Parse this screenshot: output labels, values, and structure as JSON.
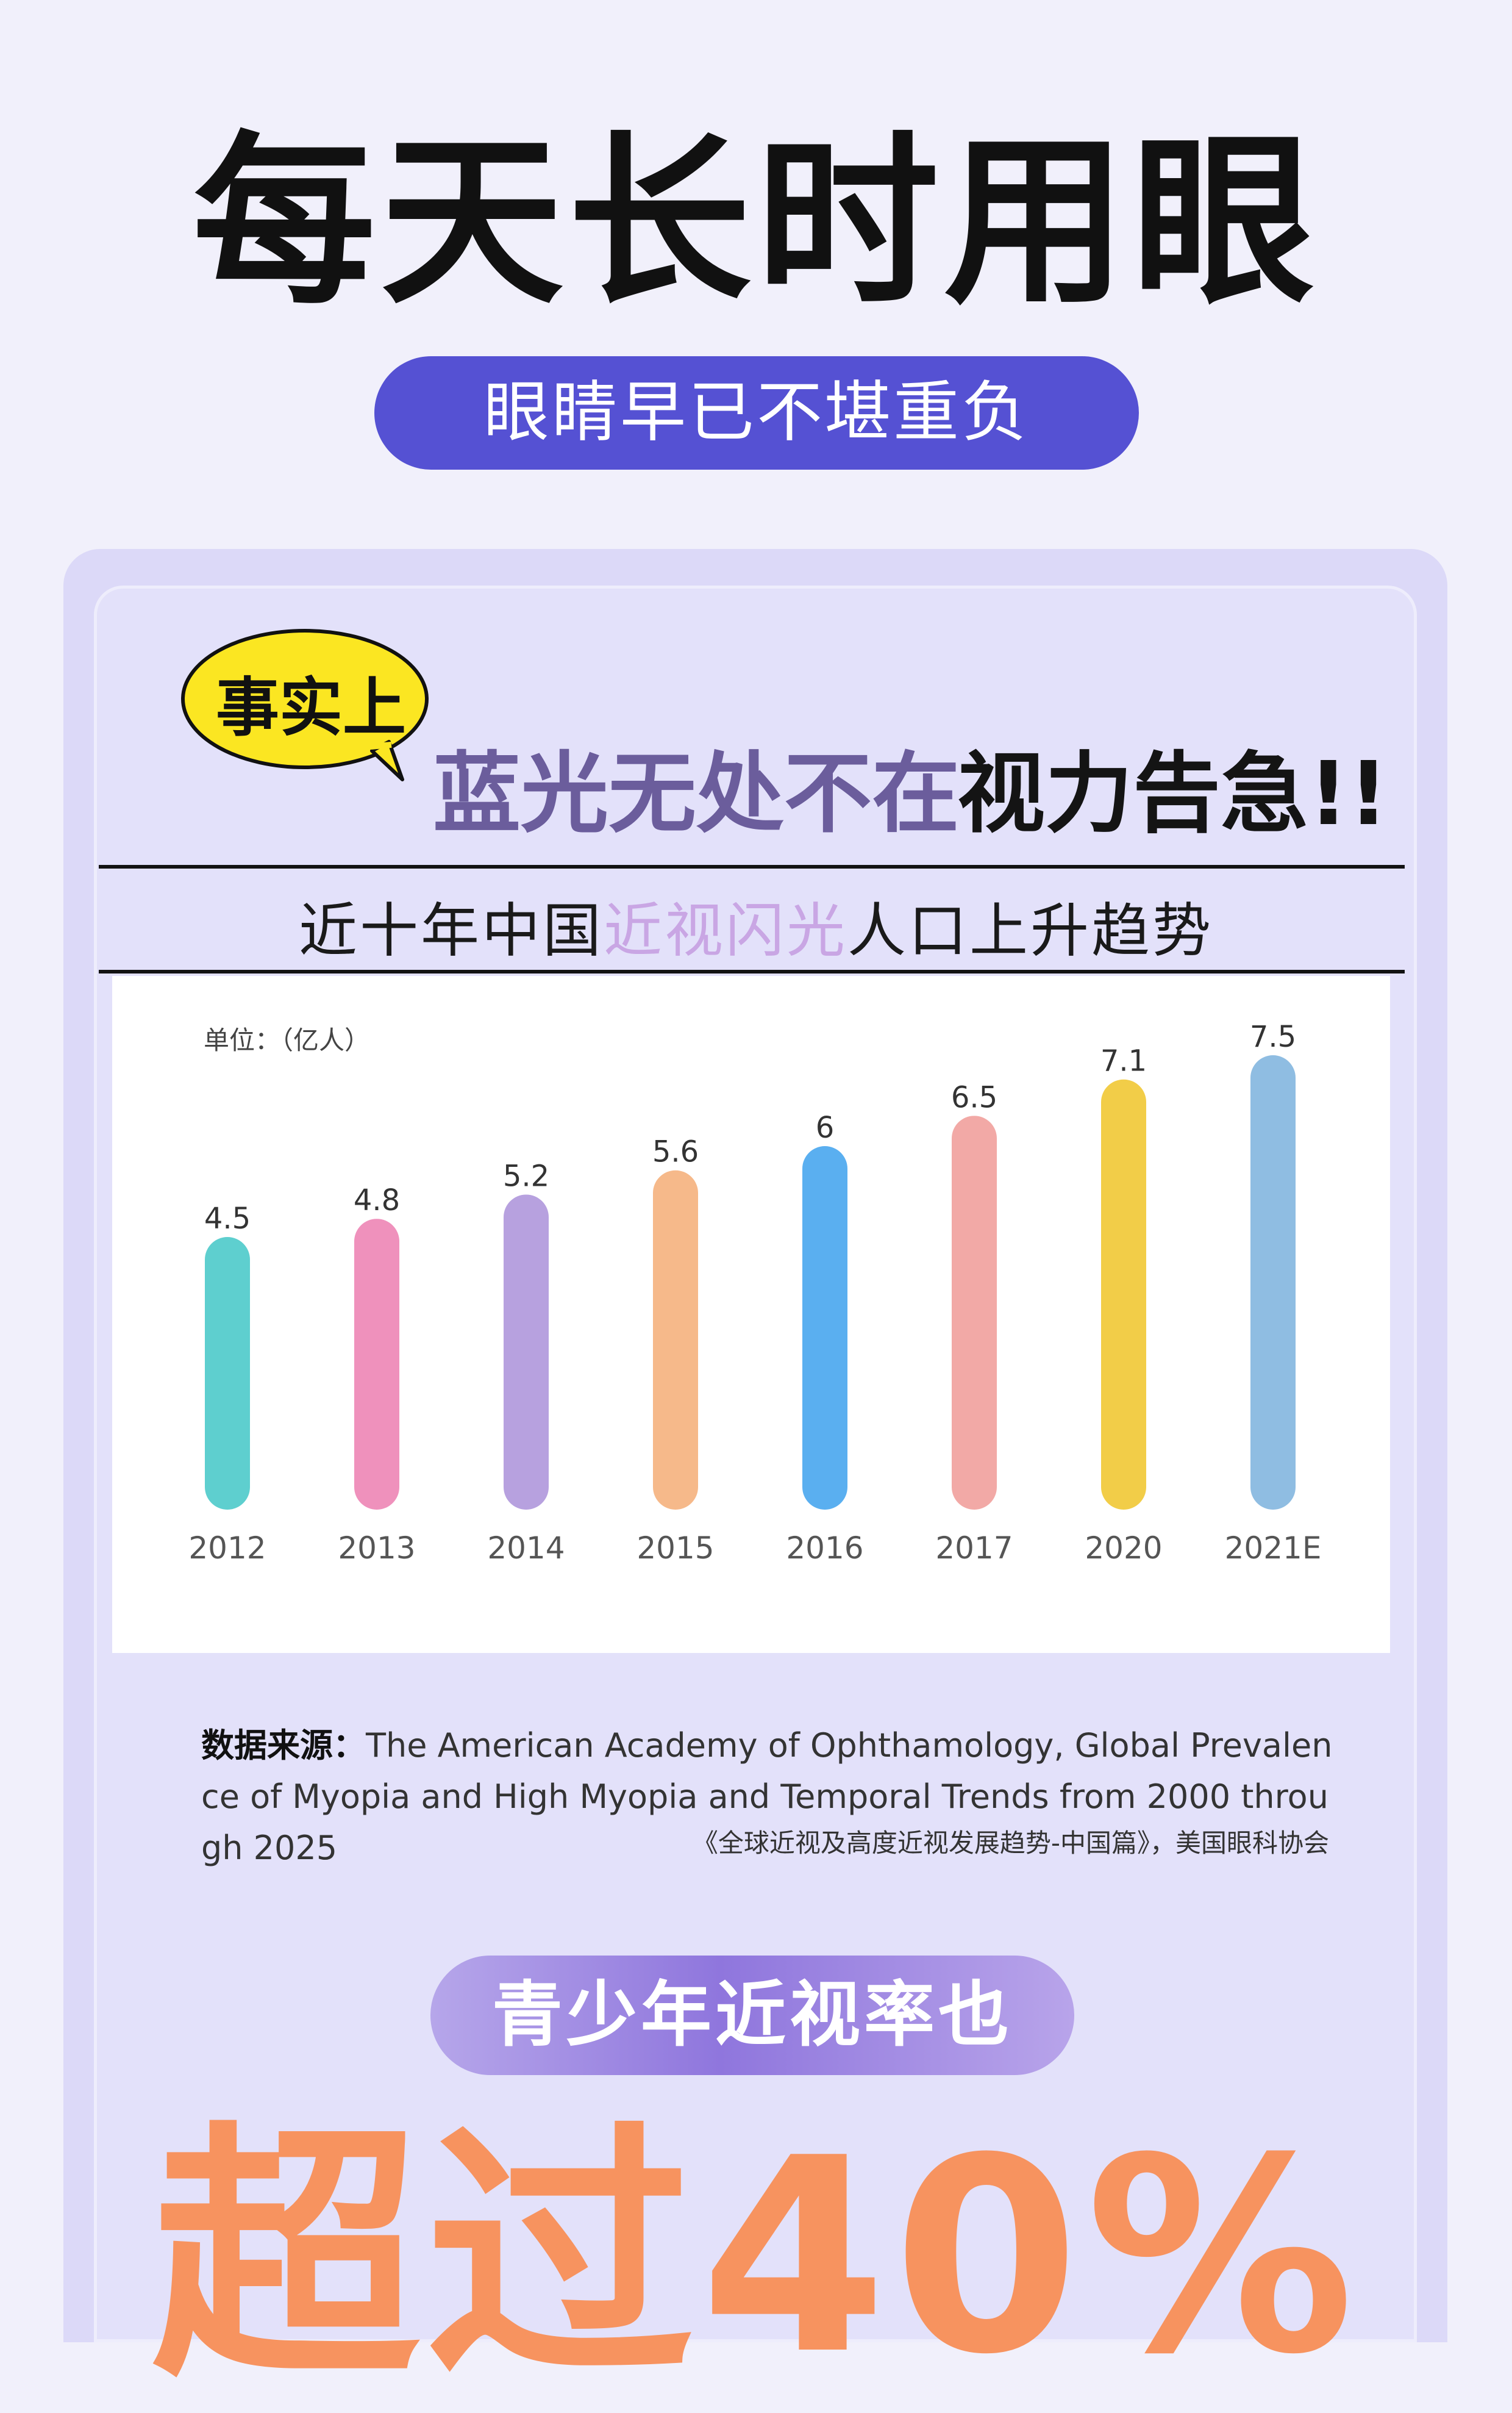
{
  "header": {
    "headline": "每天长时用眼",
    "pill": "眼睛早已不堪重负"
  },
  "card": {
    "bubble": "事实上",
    "title_purple": "蓝光无处不在",
    "title_black": "视力告急!!",
    "subtitle_pre": "近十年中国",
    "subtitle_highlight": "近视闪光",
    "subtitle_post": "人口上升趋势",
    "source_label": "数据来源：",
    "source_text": "The American Academy of Ophthamology, Global Prevalence of Myopia and High Myopia and Temporal Trends from 2000 through 2025",
    "source_cn": "《全球近视及高度近视发展趋势-中国篇》，美国眼科协会"
  },
  "footer": {
    "pill": "青少年近视率也",
    "big_stat": "超过40%"
  },
  "colors": {
    "accent": "#5551d3",
    "stat": "#f7935f"
  },
  "chart_data": {
    "type": "bar",
    "unit_label": "单位：（亿人）",
    "categories": [
      "2012",
      "2013",
      "2014",
      "2015",
      "2016",
      "2017",
      "2020",
      "2021E"
    ],
    "values": [
      4.5,
      4.8,
      5.2,
      5.6,
      6,
      6.5,
      7.1,
      7.5
    ],
    "value_labels": [
      "4.5",
      "4.8",
      "5.2",
      "5.6",
      "6",
      "6.5",
      "7.1",
      "7.5"
    ],
    "colors": [
      "#5ecfcf",
      "#ef91bc",
      "#b7a1df",
      "#f6b98a",
      "#5aaff0",
      "#f2a9a6",
      "#f2cd48",
      "#8fbde2"
    ],
    "ylim": [
      0,
      7.5
    ],
    "grid": false,
    "legend": "none"
  }
}
